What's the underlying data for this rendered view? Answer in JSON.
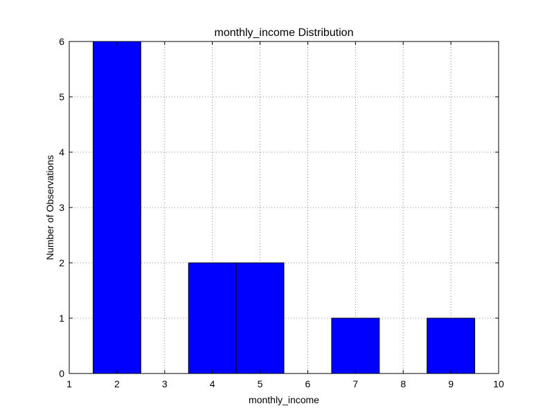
{
  "chart_data": {
    "type": "bar",
    "title": "monthly_income Distribution",
    "xlabel": "monthly_income",
    "ylabel": "Number of Observations",
    "xlim": [
      1,
      10
    ],
    "ylim": [
      0,
      6
    ],
    "xticks": [
      1,
      2,
      3,
      4,
      5,
      6,
      7,
      8,
      9,
      10
    ],
    "yticks": [
      0,
      1,
      2,
      3,
      4,
      5,
      6
    ],
    "grid": true,
    "bar_color": "#0000ff",
    "bar_width": 1,
    "bars": [
      {
        "x": 2,
        "value": 6
      },
      {
        "x": 4,
        "value": 2
      },
      {
        "x": 5,
        "value": 2
      },
      {
        "x": 7,
        "value": 1
      },
      {
        "x": 9,
        "value": 1
      }
    ]
  }
}
